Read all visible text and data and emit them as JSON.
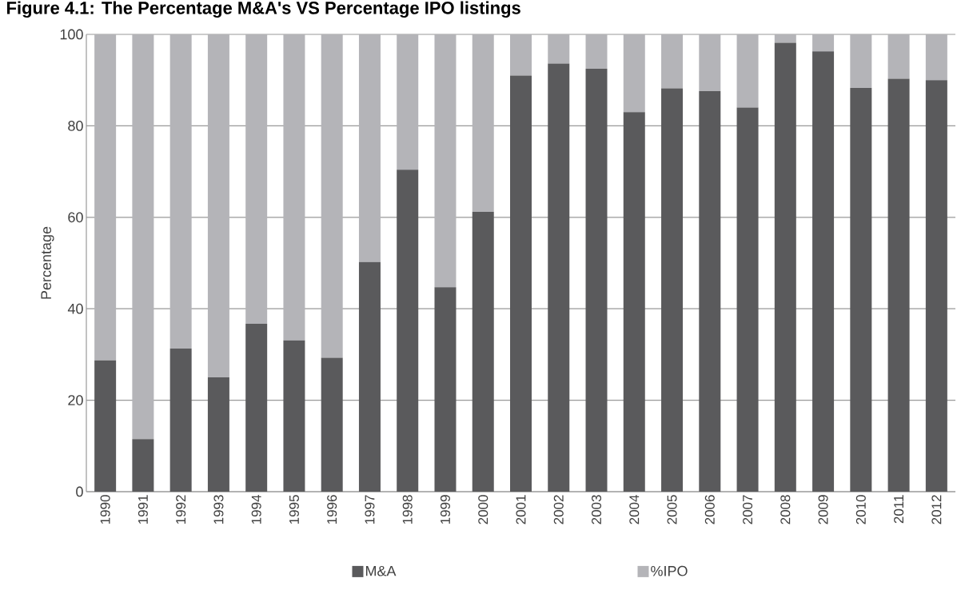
{
  "chart_data": {
    "type": "bar",
    "stacked": true,
    "title": "Figure 4.1: The Percentage M&A's VS Percentage IPO listings",
    "ylabel": "Percentage",
    "categories": [
      "1990",
      "1991",
      "1992",
      "1993",
      "1994",
      "1995",
      "1996",
      "1997",
      "1998",
      "1999",
      "2000",
      "2001",
      "2002",
      "2003",
      "2004",
      "2005",
      "2006",
      "2007",
      "2008",
      "2009",
      "2010",
      "2011",
      "2012"
    ],
    "series": [
      {
        "name": "M&A",
        "color": "#5a5a5c",
        "values": [
          28.7,
          11.5,
          31.3,
          25,
          36.7,
          33.1,
          29.3,
          50.2,
          70.4,
          44.7,
          61.2,
          91,
          93.6,
          92.5,
          83,
          88.2,
          87.6,
          84,
          98.2,
          96.3,
          88.3,
          90.3,
          90
        ]
      },
      {
        "name": "%IPO",
        "color": "#b4b4b8",
        "values": [
          71.3,
          88.5,
          68.7,
          75,
          63.3,
          66.9,
          70.7,
          49.8,
          29.6,
          55.3,
          38.8,
          9,
          6.4,
          7.5,
          17,
          11.8,
          12.4,
          16,
          1.8,
          3.7,
          11.7,
          9.7,
          10
        ]
      }
    ],
    "ylim": [
      0,
      100
    ],
    "yticks": [
      0,
      20,
      40,
      60,
      80,
      100
    ],
    "grid": "y",
    "legend": "bottom"
  }
}
